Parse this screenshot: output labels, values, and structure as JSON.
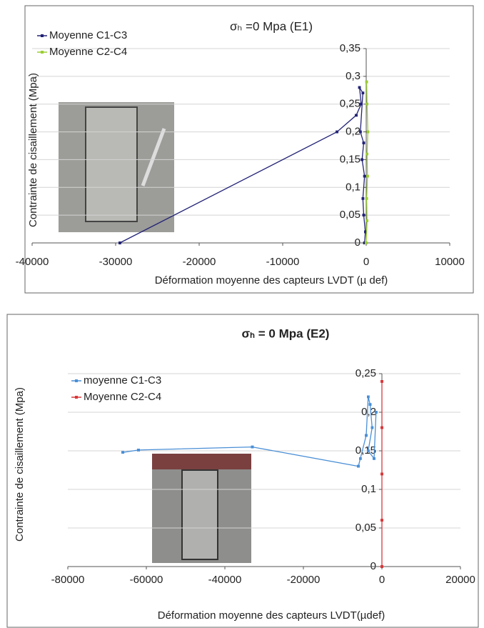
{
  "chart_data": [
    {
      "type": "line",
      "title": "σₕ =0 Mpa (E1)",
      "x_label": "Déformation moyenne des capteurs LVDT (µ def)",
      "y_label": "Contrainte de cisaillement (Mpa)",
      "xlim": [
        -40000,
        10000
      ],
      "xticks": [
        -40000,
        -30000,
        -20000,
        -10000,
        0,
        10000
      ],
      "ylim": [
        0,
        0.35
      ],
      "yticks": [
        0,
        {
          "value": 0.05,
          "label": "0,05"
        },
        {
          "value": 0.1,
          "label": "0,1"
        },
        {
          "value": 0.15,
          "label": "0,15"
        },
        {
          "value": 0.2,
          "label": "0,2"
        },
        {
          "value": 0.25,
          "label": "0,25"
        },
        {
          "value": 0.3,
          "label": "0,3"
        },
        {
          "value": 0.35,
          "label": "0,35"
        }
      ],
      "grid": true,
      "series": [
        {
          "name": "Moyenne C1-C3",
          "color": "#232377",
          "x": [
            -29500,
            -3500,
            -1200,
            -600,
            -800,
            -400,
            -700,
            -300,
            -500,
            -200,
            -400,
            -300,
            -100,
            -200
          ],
          "values": [
            0,
            0.2,
            0.23,
            0.25,
            0.28,
            0.27,
            0.2,
            0.18,
            0.15,
            0.12,
            0.08,
            0.05,
            0.02,
            0
          ]
        },
        {
          "name": "Moyenne C2-C4",
          "color": "#9acd32",
          "x": [
            0,
            100,
            50,
            150,
            100,
            200,
            100,
            50
          ],
          "values": [
            0,
            0.04,
            0.08,
            0.12,
            0.16,
            0.2,
            0.25,
            0.29
          ]
        }
      ]
    },
    {
      "type": "line",
      "title": "σₕ = 0 Mpa (E2)",
      "x_label": "Déformation moyenne des capteurs LVDT(µdef)",
      "y_label": "Contrainte de cisaillement (Mpa)",
      "xlim": [
        -80000,
        20000
      ],
      "xticks": [
        -80000,
        -60000,
        -40000,
        -20000,
        0,
        20000
      ],
      "ylim": [
        0,
        0.25
      ],
      "yticks": [
        0,
        {
          "value": 0.05,
          "label": "0,05"
        },
        {
          "value": 0.1,
          "label": "0,1"
        },
        {
          "value": 0.15,
          "label": "0,15"
        },
        {
          "value": 0.2,
          "label": "0,2"
        },
        {
          "value": 0.25,
          "label": "0,25"
        }
      ],
      "grid": true,
      "series": [
        {
          "name": "moyenne C1-C3",
          "color": "#4a8fd6",
          "x": [
            -66000,
            -62000,
            -33000,
            -6000,
            -5500,
            -4000,
            -3500,
            -3000,
            -2500,
            -3500,
            -2000,
            -1500
          ],
          "values": [
            0.148,
            0.151,
            0.155,
            0.13,
            0.14,
            0.17,
            0.22,
            0.21,
            0.18,
            0.15,
            0.14,
            0.2
          ]
        },
        {
          "name": "Moyenne C2-C4",
          "color": "#d9383a",
          "x": [
            0,
            0,
            0,
            0,
            0
          ],
          "values": [
            0,
            0.06,
            0.12,
            0.18,
            0.24
          ]
        }
      ]
    }
  ]
}
